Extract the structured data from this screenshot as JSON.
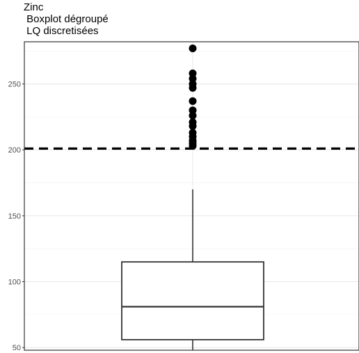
{
  "chart_data": {
    "type": "boxplot",
    "title_lines": [
      "Zinc",
      " Boxplot dégroupé",
      " LQ discretisées"
    ],
    "xlabel": "",
    "ylabel": "",
    "x_ticks": [],
    "y_ticks": [
      50,
      100,
      150,
      200,
      250
    ],
    "ylim": [
      48,
      282
    ],
    "grid": true,
    "box": {
      "lower_whisker": 48,
      "q1": 56,
      "median": 81,
      "q3": 115,
      "upper_whisker": 170
    },
    "outliers": [
      277,
      258,
      254,
      250,
      247,
      237,
      230,
      226,
      221,
      218,
      213,
      210,
      207,
      205,
      203
    ],
    "reference_line": {
      "y": 201,
      "style": "dashed"
    }
  }
}
